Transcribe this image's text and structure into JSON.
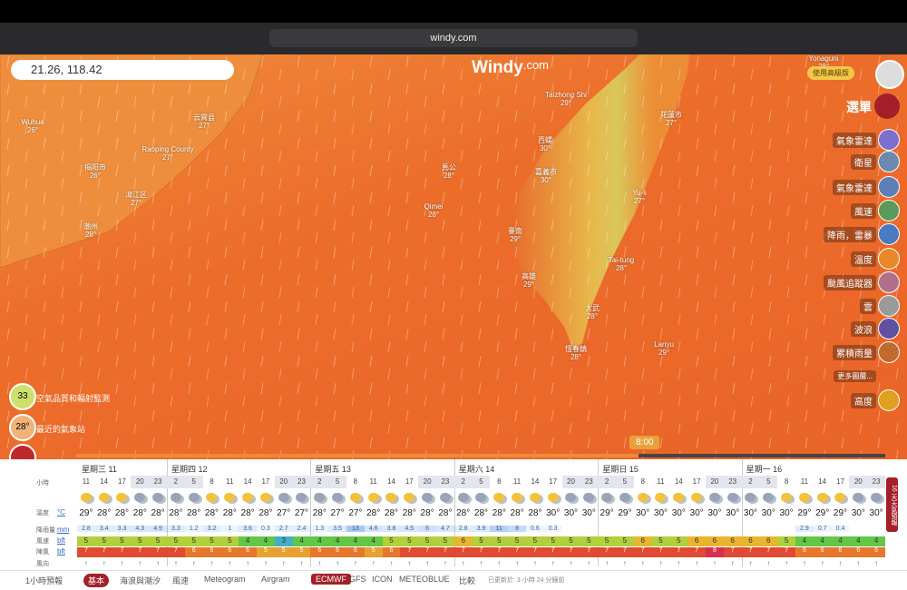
{
  "browser": {
    "url": "windy.com"
  },
  "search": {
    "query": "21.26, 118.42"
  },
  "logo": {
    "name": "Windy",
    "suffix": ".com"
  },
  "premium": "使用高級版",
  "menu": "選單",
  "layers": [
    "氣象雷達",
    "衛星",
    "氣象雷達",
    "風速",
    "降雨，雷暴",
    "溫度",
    "颱風追蹤器",
    "雲",
    "波浪",
    "累積雨量",
    "更多圖層...",
    "高度"
  ],
  "left_widgets": [
    {
      "badge": "33",
      "label": "空氣品質和輻射監測"
    },
    {
      "badge": "28°",
      "label": "最近的氣象站"
    }
  ],
  "map_labels": [
    {
      "name": "Wuhua",
      "temp": "26°"
    },
    {
      "name": "Raoping County",
      "temp": "27°"
    },
    {
      "name": "云霄县",
      "temp": "27°"
    },
    {
      "name": "揭阳市",
      "temp": "26°"
    },
    {
      "name": "漳江区",
      "temp": "27°"
    },
    {
      "name": "潮州",
      "temp": "28°"
    },
    {
      "name": "Taizhong Shi",
      "temp": "29°"
    },
    {
      "name": "西螺",
      "temp": "30°"
    },
    {
      "name": "嘉義市",
      "temp": "30°"
    },
    {
      "name": "臺南",
      "temp": "29°"
    },
    {
      "name": "高雄",
      "temp": "29°"
    },
    {
      "name": "馬公",
      "temp": "28°"
    },
    {
      "name": "Qimei",
      "temp": "28°"
    },
    {
      "name": "花蓮市",
      "temp": "27°"
    },
    {
      "name": "Yu-li",
      "temp": "27°"
    },
    {
      "name": "Tai-tung",
      "temp": "28°"
    },
    {
      "name": "大武",
      "temp": "28°"
    },
    {
      "name": "恆春鎮",
      "temp": "28°"
    },
    {
      "name": "Lanyu",
      "temp": "29°"
    },
    {
      "name": "Yonaguni",
      "temp": "28°"
    }
  ],
  "timeline": {
    "time": "8:00"
  },
  "forecast": {
    "row_labels": {
      "hours": "小時",
      "temp": "溫度",
      "temp_unit": "°C",
      "rain": "降雨量",
      "rain_unit": "mm",
      "wind": "風速",
      "wind_unit": "bft",
      "gust": "陣風",
      "gust_unit": "bft",
      "dir": "風向"
    },
    "days": [
      {
        "label": "星期三 11",
        "hours": [
          11,
          14,
          17,
          20,
          23
        ],
        "temp": [
          "29°",
          "28°",
          "28°",
          "28°",
          "28°"
        ],
        "rain": [
          2.8,
          3.4,
          3.3,
          4.3,
          4.9
        ],
        "wind": [
          5,
          5,
          5,
          5,
          5
        ],
        "gust": [
          7,
          7,
          7,
          7,
          7
        ]
      },
      {
        "label": "星期四 12",
        "hours": [
          2,
          5,
          8,
          11,
          14,
          17,
          20,
          23
        ],
        "temp": [
          "28°",
          "28°",
          "28°",
          "28°",
          "28°",
          "28°",
          "27°",
          "27°"
        ],
        "rain": [
          3.3,
          1.2,
          3.2,
          1,
          3.6,
          0.3,
          2.7,
          2.4
        ],
        "wind": [
          5,
          5,
          5,
          5,
          4,
          4,
          3,
          4
        ],
        "gust": [
          7,
          6,
          6,
          6,
          6,
          5,
          5,
          5
        ]
      },
      {
        "label": "星期五 13",
        "hours": [
          2,
          5,
          8,
          11,
          14,
          17,
          20,
          23
        ],
        "temp": [
          "28°",
          "27°",
          "27°",
          "28°",
          "28°",
          "28°",
          "28°",
          "28°"
        ],
        "rain": [
          1.3,
          3.5,
          13,
          4.6,
          3.8,
          4.5,
          6,
          4.7
        ],
        "wind": [
          4,
          4,
          4,
          4,
          5,
          5,
          5,
          5
        ],
        "gust": [
          6,
          6,
          6,
          5,
          6,
          7,
          7,
          7
        ]
      },
      {
        "label": "星期六 14",
        "hours": [
          2,
          5,
          8,
          11,
          14,
          17,
          20,
          23
        ],
        "temp": [
          "28°",
          "28°",
          "28°",
          "28°",
          "28°",
          "30°",
          "30°",
          "30°"
        ],
        "rain": [
          2.8,
          3.9,
          11,
          8,
          0.6,
          0.3,
          null,
          null
        ],
        "wind": [
          6,
          5,
          5,
          5,
          5,
          5,
          5,
          5
        ],
        "gust": [
          7,
          7,
          7,
          7,
          7,
          7,
          7,
          7
        ]
      },
      {
        "label": "星期日 15",
        "hours": [
          2,
          5,
          8,
          11,
          14,
          17,
          20,
          23
        ],
        "temp": [
          "29°",
          "29°",
          "30°",
          "30°",
          "30°",
          "30°",
          "30°",
          "30°"
        ],
        "rain": [
          null,
          null,
          null,
          null,
          null,
          null,
          null,
          null
        ],
        "wind": [
          5,
          5,
          6,
          5,
          5,
          6,
          6,
          6
        ],
        "gust": [
          7,
          7,
          7,
          7,
          7,
          7,
          8,
          7
        ]
      },
      {
        "label": "星期一 16",
        "hours": [
          2,
          5,
          8,
          11,
          14,
          17,
          20,
          23
        ],
        "temp": [
          "30°",
          "30°",
          "30°",
          "29°",
          "29°",
          "29°",
          "30°",
          "30°"
        ],
        "rain": [
          null,
          null,
          null,
          2.9,
          0.7,
          0.4,
          null,
          null
        ],
        "wind": [
          6,
          6,
          5,
          4,
          4,
          4,
          4,
          4
        ],
        "gust": [
          7,
          7,
          7,
          6,
          6,
          6,
          6,
          6
        ]
      }
    ]
  },
  "side_tab": "16 天天氣預報",
  "bottom_bar": {
    "hourly": "1小時預報",
    "tabs": [
      "基本",
      "海浪與潮汐",
      "風速",
      "Meteogram",
      "Airgram"
    ],
    "models": [
      "ECMWF",
      "GFS",
      "ICON",
      "METEOBLUE"
    ],
    "compare": "比較",
    "updated": "已更新於: 3 小時 24 分鐘前"
  }
}
